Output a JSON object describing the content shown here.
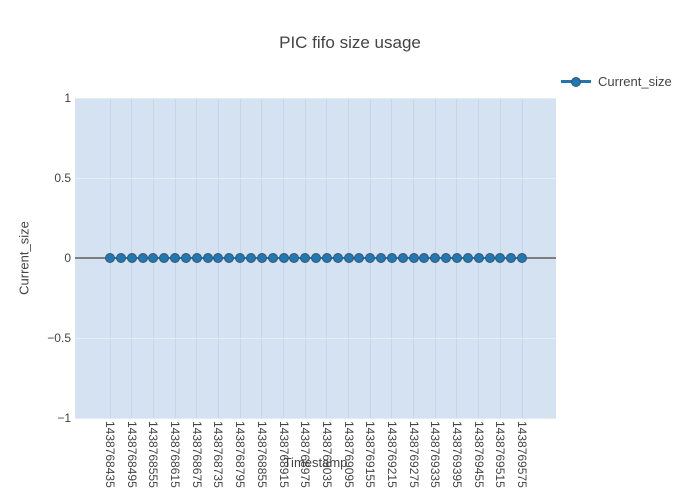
{
  "title": "PIC fifo size usage",
  "legend": {
    "items": [
      {
        "label": "Current_size",
        "color": "#1f77b4"
      }
    ]
  },
  "axes": {
    "x_title": "Timestamp",
    "y_title": "Current_size"
  },
  "colors": {
    "accent": "#1f77b4",
    "marker_edge": "#3d566b",
    "plot_bg": "#d4e2f1",
    "grid_vertical": "#c7d6e6",
    "grid_horizontal": "#e4ecf6",
    "zero_line": "#7e7e7e",
    "text": "#444444"
  },
  "chart_data": {
    "type": "line",
    "title": "PIC fifo size usage",
    "xlabel": "Timestamp",
    "ylabel": "Current_size",
    "legend_position": "top-right",
    "grid": true,
    "xlim": [
      1438768338,
      1438769669
    ],
    "ylim": [
      -1,
      1
    ],
    "x_tick_labels": [
      "1438768435",
      "1438768495",
      "1438768555",
      "1438768615",
      "1438768675",
      "1438768735",
      "1438768795",
      "1438768855",
      "1438768915",
      "1438768975",
      "1438769035",
      "1438769095",
      "1438769155",
      "1438769215",
      "1438769275",
      "1438769335",
      "1438769395",
      "1438769455",
      "1438769515",
      "1438769575"
    ],
    "y_tick_labels": [
      "1",
      "0.5",
      "0",
      "−0.5",
      "−1"
    ],
    "y_tick_values": [
      1,
      0.5,
      0,
      -0.5,
      -1
    ],
    "series": [
      {
        "name": "Current_size",
        "color": "#1f77b4",
        "marker": "circle",
        "x": [
          1438768435,
          1438768465,
          1438768495,
          1438768525,
          1438768555,
          1438768585,
          1438768615,
          1438768645,
          1438768675,
          1438768705,
          1438768735,
          1438768765,
          1438768795,
          1438768825,
          1438768855,
          1438768885,
          1438768915,
          1438768945,
          1438768975,
          1438769005,
          1438769035,
          1438769065,
          1438769095,
          1438769125,
          1438769155,
          1438769185,
          1438769215,
          1438769245,
          1438769275,
          1438769305,
          1438769335,
          1438769365,
          1438769395,
          1438769425,
          1438769455,
          1438769485,
          1438769515,
          1438769545,
          1438769575
        ],
        "y": [
          0,
          0,
          0,
          0,
          0,
          0,
          0,
          0,
          0,
          0,
          0,
          0,
          0,
          0,
          0,
          0,
          0,
          0,
          0,
          0,
          0,
          0,
          0,
          0,
          0,
          0,
          0,
          0,
          0,
          0,
          0,
          0,
          0,
          0,
          0,
          0,
          0,
          0,
          0
        ]
      }
    ]
  }
}
